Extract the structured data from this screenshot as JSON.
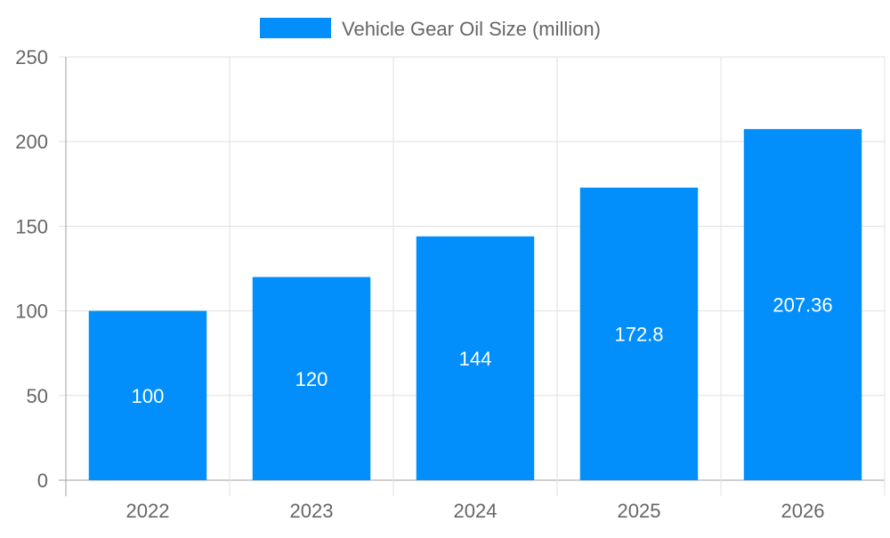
{
  "chart_data": {
    "type": "bar",
    "categories": [
      "2022",
      "2023",
      "2024",
      "2025",
      "2026"
    ],
    "series": [
      {
        "name": "Vehicle Gear Oil Size (million)",
        "values": [
          100,
          120,
          144,
          172.8,
          207.36
        ]
      }
    ],
    "data_labels": [
      "100",
      "120",
      "144",
      "172.8",
      "207.36"
    ],
    "ylim": [
      0,
      250
    ],
    "yticks": [
      "0",
      "50",
      "100",
      "150",
      "200",
      "250"
    ],
    "grid": true,
    "legend_position": "top",
    "colors": {
      "bar": "#028ffb",
      "grid": "#e0e0e0",
      "axis": "#a0a0a0",
      "text": "#666666",
      "data_label": "#ffffff"
    }
  }
}
